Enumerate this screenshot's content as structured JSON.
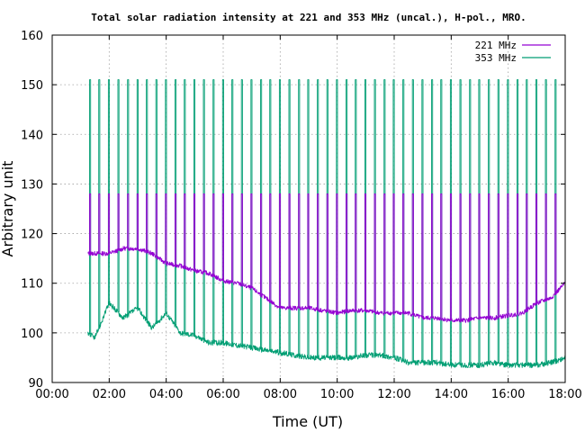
{
  "chart_data": {
    "type": "line",
    "title": "Total solar radiation intensity at 221 and 353 MHz (uncal.), H-pol., MRO.",
    "xlabel": "Time (UT)",
    "ylabel": "Arbitrary unit",
    "xlim_hours": [
      0,
      18
    ],
    "ylim": [
      90,
      160
    ],
    "x_ticks": [
      "00:00",
      "02:00",
      "04:00",
      "06:00",
      "08:00",
      "10:00",
      "12:00",
      "14:00",
      "16:00",
      "18:00"
    ],
    "y_ticks": [
      "90",
      "100",
      "110",
      "120",
      "130",
      "140",
      "150",
      "160"
    ],
    "grid": true,
    "legend_position": "top-right",
    "calibration_spikes": {
      "start_hours": 1.3,
      "interval_hours": 0.3333,
      "end_hours": 17.9,
      "peak_353": 151,
      "peak_221": 128
    },
    "series": [
      {
        "name": "221 MHz",
        "color": "#9400d3",
        "x_hours": [
          1.25,
          1.5,
          2.0,
          2.5,
          3.0,
          3.5,
          4.0,
          4.5,
          5.0,
          5.5,
          6.0,
          6.5,
          7.0,
          7.5,
          8.0,
          8.5,
          9.0,
          9.5,
          10.0,
          10.5,
          11.0,
          11.5,
          12.0,
          12.5,
          13.0,
          13.5,
          14.0,
          14.5,
          15.0,
          15.5,
          16.0,
          16.5,
          17.0,
          17.5,
          18.0
        ],
        "values": [
          116,
          116,
          116,
          117,
          117,
          116,
          114,
          113.5,
          112.5,
          112,
          110.5,
          110,
          109,
          107,
          105,
          105,
          105,
          104.5,
          104,
          104.5,
          104.5,
          104,
          104,
          104,
          103,
          103,
          102.5,
          102.5,
          103,
          103,
          103.5,
          104,
          106,
          107,
          110
        ]
      },
      {
        "name": "353 MHz",
        "color": "#009e73",
        "x_hours": [
          1.25,
          1.5,
          2.0,
          2.5,
          3.0,
          3.5,
          4.0,
          4.5,
          5.0,
          5.5,
          6.0,
          6.5,
          7.0,
          7.5,
          8.0,
          8.5,
          9.0,
          9.5,
          10.0,
          10.5,
          11.0,
          11.5,
          12.0,
          12.5,
          13.0,
          13.5,
          14.0,
          14.5,
          15.0,
          15.5,
          16.0,
          16.5,
          17.0,
          17.5,
          18.0
        ],
        "values": [
          100,
          99,
          106,
          103,
          105,
          101,
          104,
          100,
          99.5,
          98,
          98,
          97.5,
          97,
          96.5,
          96,
          95.5,
          95,
          95,
          95,
          95,
          95.5,
          95.5,
          95,
          94,
          94,
          94,
          93.5,
          93.5,
          93.5,
          94,
          93.5,
          93.5,
          93.5,
          94,
          95
        ]
      }
    ]
  }
}
